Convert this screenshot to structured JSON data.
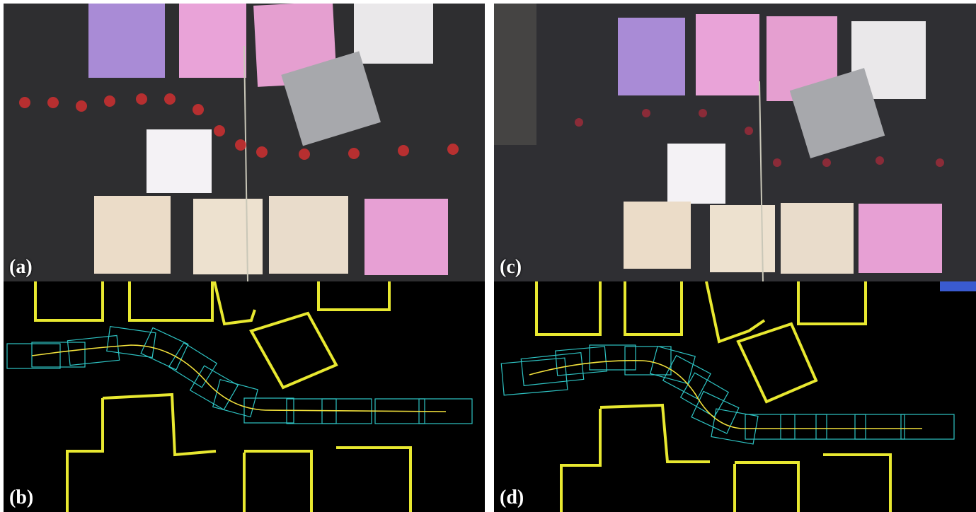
{
  "figure": {
    "panels": [
      {
        "id": "a",
        "label": "(a)",
        "kind": "photo"
      },
      {
        "id": "b",
        "label": "(b)",
        "kind": "map"
      },
      {
        "id": "c",
        "label": "(c)",
        "kind": "photo"
      },
      {
        "id": "d",
        "label": "(d)",
        "kind": "map"
      }
    ]
  },
  "colors": {
    "background": "#2f2f31",
    "map_background": "#000000",
    "obstacle_edge": "#e8e830",
    "path_line": "#f2e13c",
    "footprint_box": "#2ec4c4",
    "box_pink": "#e79ad0",
    "box_purple": "#a889d6",
    "box_beige": "#eadbc8",
    "box_white": "#f2f0f3",
    "box_grey": "#a8a9ad"
  },
  "icons": {
    "robot": "robot-car-icon"
  }
}
